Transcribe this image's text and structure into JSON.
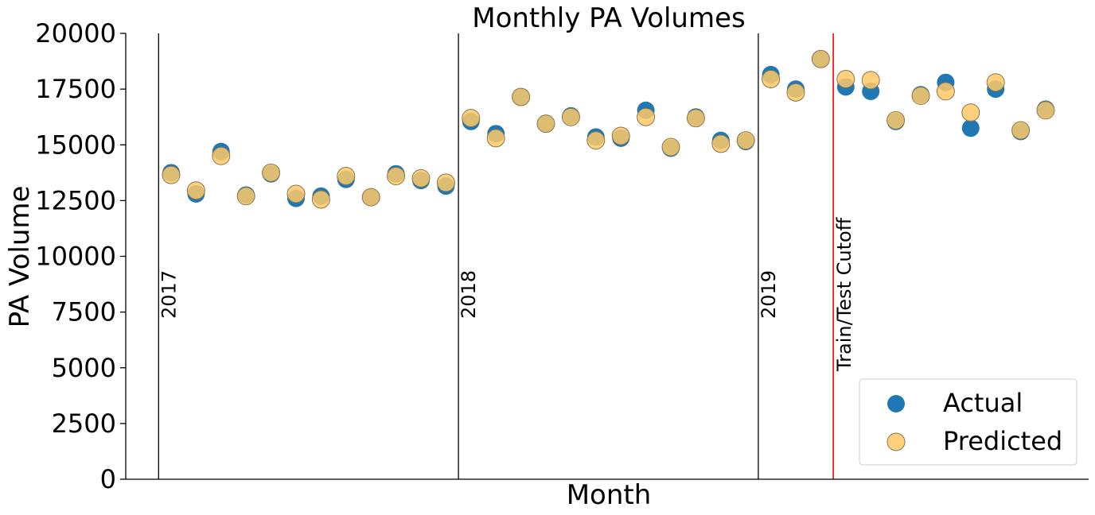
{
  "chart_data": {
    "type": "scatter",
    "title": "Monthly PA Volumes",
    "xlabel": "Month",
    "ylabel": "PA Volume",
    "ylim": [
      0,
      20000
    ],
    "yticks": [
      0,
      2500,
      5000,
      7500,
      10000,
      12500,
      15000,
      17500,
      20000
    ],
    "grid": false,
    "legend_position": "bottom-right",
    "months": 36,
    "year_markers": [
      {
        "label": "2017",
        "month_index": -0.5
      },
      {
        "label": "2018",
        "month_index": 11.5
      },
      {
        "label": "2019",
        "month_index": 23.5
      }
    ],
    "cutoff": {
      "label": "Train/Test Cutoff",
      "month_index": 26.5,
      "color": "#ff0000"
    },
    "series": [
      {
        "name": "Actual",
        "color": "#1f77b4",
        "values": [
          13750,
          12800,
          14700,
          12750,
          13700,
          12600,
          12700,
          13450,
          12650,
          13700,
          13400,
          13150,
          16050,
          15500,
          17150,
          15950,
          16300,
          15350,
          15300,
          16550,
          14850,
          16250,
          15200,
          15150,
          18150,
          17500,
          18850,
          17600,
          17400,
          16050,
          17250,
          17800,
          15750,
          17500,
          15600,
          16600
        ]
      },
      {
        "name": "Predicted",
        "color": "#ffc966",
        "edgecolor": "#8b7350",
        "values": [
          13650,
          12950,
          14500,
          12700,
          13750,
          12800,
          12550,
          13600,
          12650,
          13600,
          13500,
          13300,
          16200,
          15300,
          17150,
          15950,
          16250,
          15200,
          15400,
          16250,
          14900,
          16200,
          15050,
          15200,
          17950,
          17350,
          18850,
          17950,
          17900,
          16100,
          17200,
          17400,
          16450,
          17800,
          15650,
          16550
        ]
      }
    ]
  }
}
